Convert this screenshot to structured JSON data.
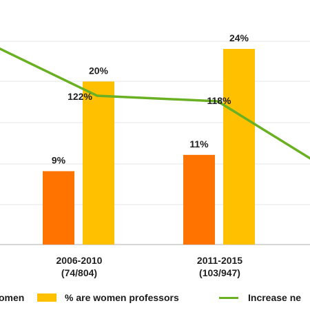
{
  "chart_data": {
    "type": "bar",
    "categories": [
      [
        "2006-2010",
        "(74/804)"
      ],
      [
        "2011-2015",
        "(103/947)"
      ]
    ],
    "ylim": [
      0,
      30
    ],
    "grid": true,
    "legend_position": "bottom",
    "series": [
      {
        "name": "% are women",
        "kind": "bar",
        "color": "#FF7300",
        "values": [
          9,
          11
        ],
        "labels": [
          "9%",
          "11%"
        ]
      },
      {
        "name": "% are women professors",
        "kind": "bar",
        "color": "#FFC000",
        "values": [
          20,
          24
        ],
        "labels": [
          "20%",
          "24%"
        ]
      },
      {
        "name": "Increase ne",
        "kind": "line",
        "color": "#6AB023",
        "labels": [
          "122%",
          "118%"
        ]
      }
    ],
    "legend": [
      {
        "text": "omen",
        "color": "#FF7300",
        "marker": "bar"
      },
      {
        "text": "% are women professors",
        "color": "#FFC000",
        "marker": "bar"
      },
      {
        "text": "Increase ne",
        "color": "#6AB023",
        "marker": "line"
      }
    ]
  }
}
